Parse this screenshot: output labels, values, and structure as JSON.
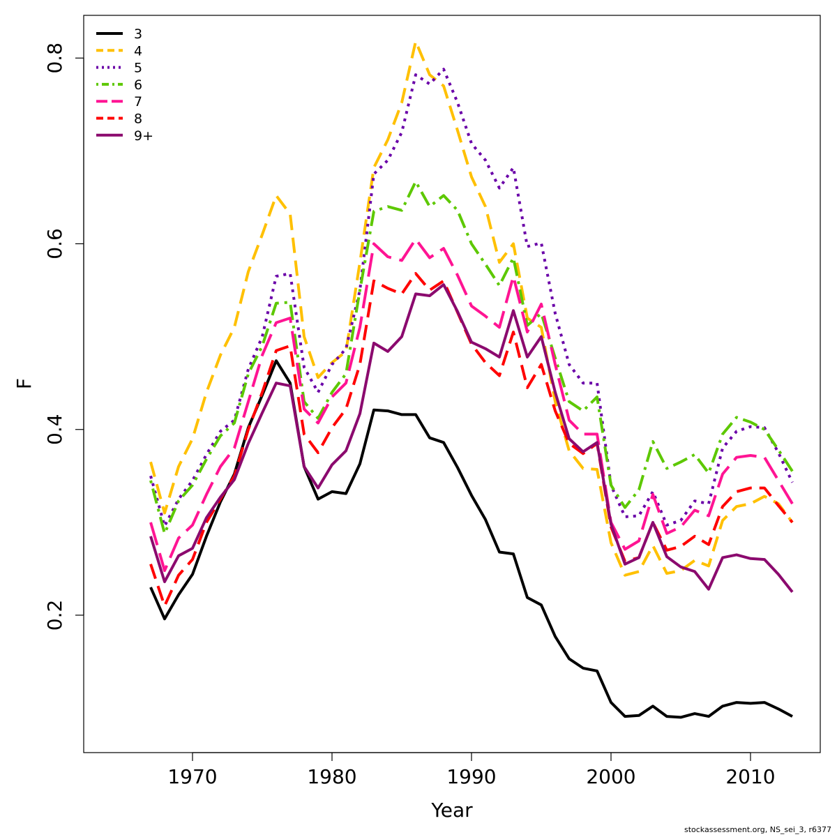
{
  "chart_data": {
    "type": "line",
    "xlabel": "Year",
    "ylabel": "F",
    "xlim": [
      1962.2,
      2015.0
    ],
    "ylim": [
      0.052,
      0.846
    ],
    "x_ticks": [
      1970,
      1980,
      1990,
      2000,
      2010
    ],
    "y_ticks": [
      0.2,
      0.4,
      0.6,
      0.8
    ],
    "legend_position": "top-left",
    "grid": false,
    "x": [
      1967,
      1968,
      1969,
      1970,
      1971,
      1972,
      1973,
      1974,
      1975,
      1976,
      1977,
      1978,
      1979,
      1980,
      1981,
      1982,
      1983,
      1984,
      1985,
      1986,
      1987,
      1988,
      1989,
      1990,
      1991,
      1992,
      1993,
      1994,
      1995,
      1996,
      1997,
      1998,
      1999,
      2000,
      2001,
      2002,
      2003,
      2004,
      2005,
      2006,
      2007,
      2008,
      2009,
      2010,
      2011,
      2012,
      2013
    ],
    "series": [
      {
        "name": "3",
        "color": "#000000",
        "dash": "solid",
        "values": [
          0.23,
          0.196,
          0.222,
          0.244,
          0.285,
          0.322,
          0.352,
          0.402,
          0.437,
          0.474,
          0.45,
          0.36,
          0.325,
          0.333,
          0.331,
          0.363,
          0.421,
          0.42,
          0.416,
          0.416,
          0.391,
          0.386,
          0.359,
          0.329,
          0.303,
          0.268,
          0.266,
          0.219,
          0.211,
          0.177,
          0.153,
          0.143,
          0.14,
          0.106,
          0.091,
          0.092,
          0.102,
          0.091,
          0.09,
          0.094,
          0.091,
          0.102,
          0.106,
          0.105,
          0.106,
          0.099,
          0.091
        ]
      },
      {
        "name": "4",
        "color": "#FFC000",
        "dash": "dashed",
        "values": [
          0.365,
          0.31,
          0.36,
          0.39,
          0.44,
          0.48,
          0.51,
          0.57,
          0.61,
          0.652,
          0.632,
          0.5,
          0.456,
          0.472,
          0.484,
          0.58,
          0.682,
          0.712,
          0.752,
          0.818,
          0.782,
          0.77,
          0.722,
          0.672,
          0.64,
          0.58,
          0.6,
          0.52,
          0.51,
          0.43,
          0.377,
          0.358,
          0.357,
          0.278,
          0.243,
          0.247,
          0.275,
          0.245,
          0.248,
          0.259,
          0.253,
          0.302,
          0.317,
          0.32,
          0.328,
          0.32,
          0.3
        ]
      },
      {
        "name": "5",
        "color": "#6A00A8",
        "dash": "dotted",
        "values": [
          0.35,
          0.296,
          0.325,
          0.345,
          0.373,
          0.398,
          0.41,
          0.465,
          0.5,
          0.565,
          0.568,
          0.467,
          0.44,
          0.47,
          0.487,
          0.55,
          0.675,
          0.69,
          0.72,
          0.782,
          0.772,
          0.788,
          0.752,
          0.708,
          0.69,
          0.66,
          0.682,
          0.597,
          0.601,
          0.525,
          0.47,
          0.45,
          0.45,
          0.34,
          0.306,
          0.307,
          0.333,
          0.297,
          0.302,
          0.323,
          0.32,
          0.38,
          0.398,
          0.403,
          0.402,
          0.375,
          0.343
        ]
      },
      {
        "name": "6",
        "color": "#5DC800",
        "dash": "dashdot",
        "values": [
          0.345,
          0.288,
          0.323,
          0.34,
          0.368,
          0.393,
          0.407,
          0.46,
          0.49,
          0.536,
          0.537,
          0.43,
          0.412,
          0.44,
          0.46,
          0.55,
          0.635,
          0.64,
          0.636,
          0.667,
          0.64,
          0.652,
          0.636,
          0.6,
          0.578,
          0.555,
          0.585,
          0.512,
          0.525,
          0.477,
          0.43,
          0.42,
          0.435,
          0.34,
          0.316,
          0.335,
          0.387,
          0.358,
          0.365,
          0.373,
          0.353,
          0.395,
          0.413,
          0.408,
          0.4,
          0.378,
          0.355
        ]
      },
      {
        "name": "7",
        "color": "#FF1493",
        "dash": "longdash",
        "values": [
          0.3,
          0.248,
          0.283,
          0.297,
          0.33,
          0.36,
          0.38,
          0.43,
          0.48,
          0.515,
          0.52,
          0.422,
          0.407,
          0.435,
          0.45,
          0.51,
          0.6,
          0.586,
          0.582,
          0.605,
          0.585,
          0.595,
          0.566,
          0.533,
          0.522,
          0.51,
          0.565,
          0.505,
          0.535,
          0.47,
          0.41,
          0.395,
          0.395,
          0.3,
          0.271,
          0.28,
          0.33,
          0.288,
          0.295,
          0.313,
          0.307,
          0.352,
          0.37,
          0.372,
          0.37,
          0.345,
          0.32
        ]
      },
      {
        "name": "8",
        "color": "#FF0000",
        "dash": "dashed",
        "values": [
          0.255,
          0.21,
          0.243,
          0.26,
          0.3,
          0.325,
          0.35,
          0.4,
          0.44,
          0.485,
          0.49,
          0.395,
          0.375,
          0.402,
          0.422,
          0.47,
          0.56,
          0.552,
          0.546,
          0.568,
          0.55,
          0.56,
          0.526,
          0.492,
          0.472,
          0.458,
          0.505,
          0.445,
          0.47,
          0.42,
          0.385,
          0.374,
          0.385,
          0.295,
          0.258,
          0.262,
          0.3,
          0.27,
          0.274,
          0.285,
          0.276,
          0.317,
          0.333,
          0.337,
          0.337,
          0.318,
          0.3
        ]
      },
      {
        "name": "9+",
        "color": "#8B0A6E",
        "dash": "solid",
        "values": [
          0.285,
          0.236,
          0.264,
          0.272,
          0.305,
          0.327,
          0.346,
          0.385,
          0.418,
          0.45,
          0.447,
          0.36,
          0.337,
          0.362,
          0.377,
          0.417,
          0.493,
          0.484,
          0.5,
          0.546,
          0.544,
          0.556,
          0.527,
          0.494,
          0.487,
          0.478,
          0.528,
          0.478,
          0.5,
          0.44,
          0.39,
          0.376,
          0.386,
          0.298,
          0.255,
          0.262,
          0.3,
          0.263,
          0.252,
          0.247,
          0.228,
          0.262,
          0.265,
          0.261,
          0.26,
          0.244,
          0.225
        ]
      }
    ]
  },
  "footer": "stockassessment.org, NS_sei_3, r6377"
}
